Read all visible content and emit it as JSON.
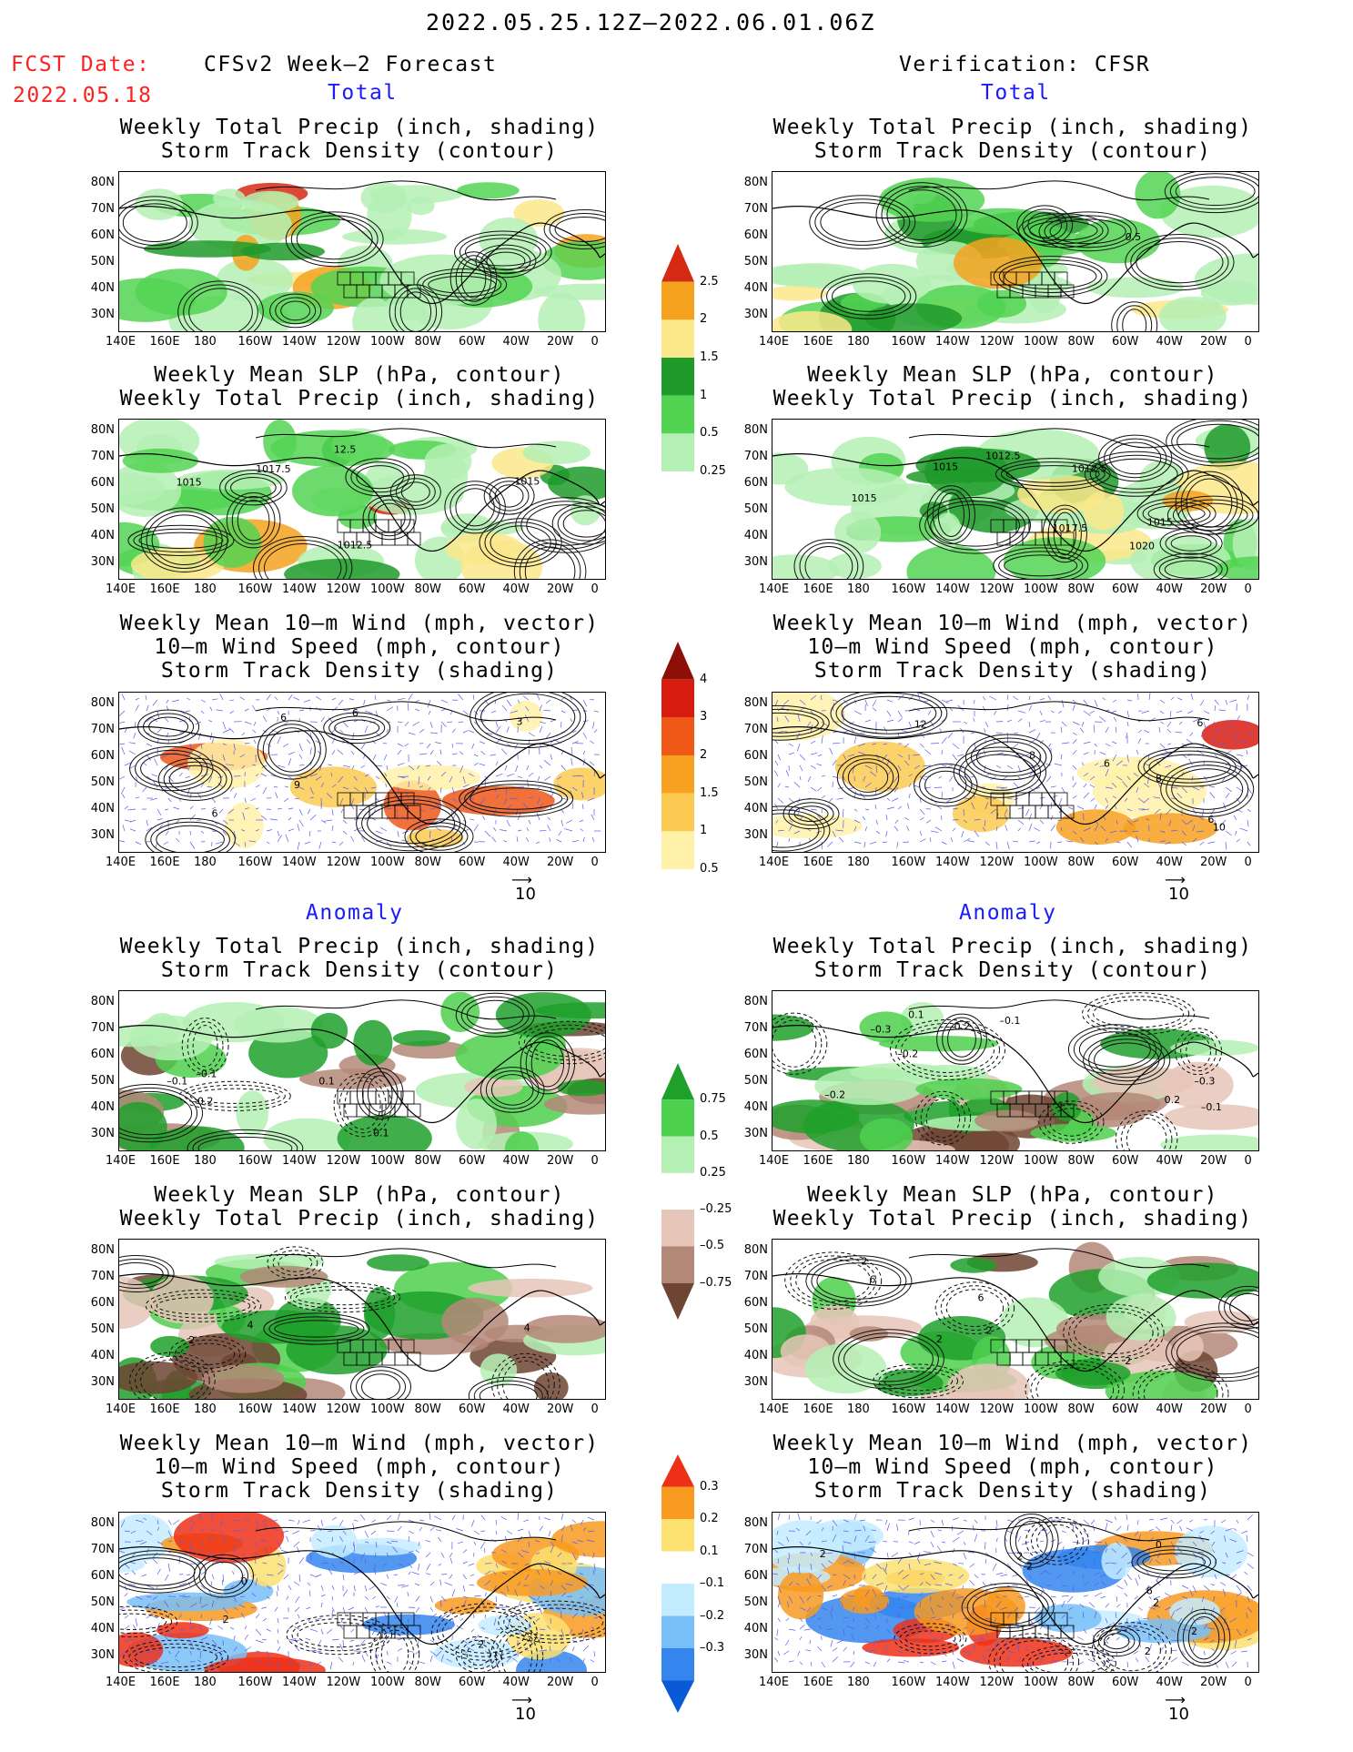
{
  "header": {
    "title": "2022.05.25.12Z–2022.06.01.06Z",
    "fcst_label": "FCST Date:",
    "fcst_date": "2022.05.18",
    "left_heading": "CFSv2 Week–2 Forecast",
    "right_heading": "Verification: CFSR",
    "total_label": "Total",
    "anomaly_label": "Anomaly"
  },
  "panel_titles": {
    "precip": [
      "Weekly Total Precip (inch, shading)",
      "Storm Track Density (contour)"
    ],
    "slp": [
      "Weekly Mean SLP (hPa, contour)",
      "Weekly Total Precip (inch, shading)"
    ],
    "wind": [
      "Weekly Mean 10–m Wind (mph, vector)",
      "10–m Wind Speed (mph, contour)",
      "Storm Track Density (shading)"
    ]
  },
  "axes": {
    "lat_ticks": [
      "80N",
      "70N",
      "60N",
      "50N",
      "40N",
      "30N"
    ],
    "lon_ticks": [
      "140E",
      "160E",
      "180",
      "160W",
      "140W",
      "120W",
      "100W",
      "80W",
      "60W",
      "40W",
      "20W",
      "0"
    ]
  },
  "vector_ref": "10",
  "colorbars": [
    {
      "id": "total_precip",
      "labels": [
        "2.5",
        "2",
        "1.5",
        "1",
        "0.5",
        "0.25"
      ],
      "colors": [
        "#d42a12",
        "#f5a21e",
        "#fbe88a",
        "#1e9a2a",
        "#52d352",
        "#b4f0b4"
      ]
    },
    {
      "id": "total_storm",
      "labels": [
        "4",
        "3",
        "2",
        "1.5",
        "1",
        "0.5"
      ],
      "colors": [
        "#8c1008",
        "#d81c10",
        "#f05818",
        "#f8a020",
        "#fcca50",
        "#fff2a8"
      ]
    },
    {
      "id": "anom_precip",
      "labels": [
        "0.75",
        "0.5",
        "0.25",
        "–0.25",
        "–0.5",
        "–0.75"
      ],
      "colors": [
        "#1ea02a",
        "#4dd04d",
        "#b4f0b4",
        "#ffffff",
        "#e6c6b8",
        "#b48878",
        "#6e4432"
      ]
    },
    {
      "id": "anom_storm",
      "labels": [
        "0.3",
        "0.2",
        "0.1",
        "–0.1",
        "–0.2",
        "–0.3"
      ],
      "colors": [
        "#ee3018",
        "#f89a20",
        "#fce070",
        "#ffffff",
        "#c4ecff",
        "#78bff8",
        "#3486ee",
        "#0a5ad8"
      ]
    }
  ],
  "contour_labels": {
    "slp_fcst": [
      "1012.5",
      "12.5",
      "1015",
      "1017.5",
      "1015"
    ],
    "slp_verif": [
      "1017.5",
      "1012.5",
      "1015",
      "1020",
      "1015",
      "1012.5",
      "1015"
    ],
    "precip_verif": [
      "0.5"
    ],
    "wind_fcst": [
      "6",
      "3",
      "6",
      "6",
      "9"
    ],
    "wind_verif": [
      "6",
      "6",
      "8",
      "12",
      "10",
      "6",
      "8"
    ],
    "anom_precip_fcst": [
      "–0.1",
      "0.1",
      "–0.1",
      "–0.2",
      "0.1"
    ],
    "anom_precip_verif": [
      "–0.2",
      "–0.1",
      "–0.1",
      "0.1",
      "–0.2",
      "–0.3",
      "–0.3",
      "0.2",
      "–0.2"
    ],
    "anom_slp_fcst": [
      "4",
      "2",
      "4"
    ],
    "anom_slp_verif": [
      "6",
      "6",
      "2",
      "2",
      "2",
      "2"
    ],
    "anom_wind_fcst": [
      "2",
      "0",
      "2"
    ],
    "anom_wind_verif": [
      "2",
      "2",
      "2",
      "2",
      "0",
      "2",
      "2",
      "6"
    ]
  }
}
